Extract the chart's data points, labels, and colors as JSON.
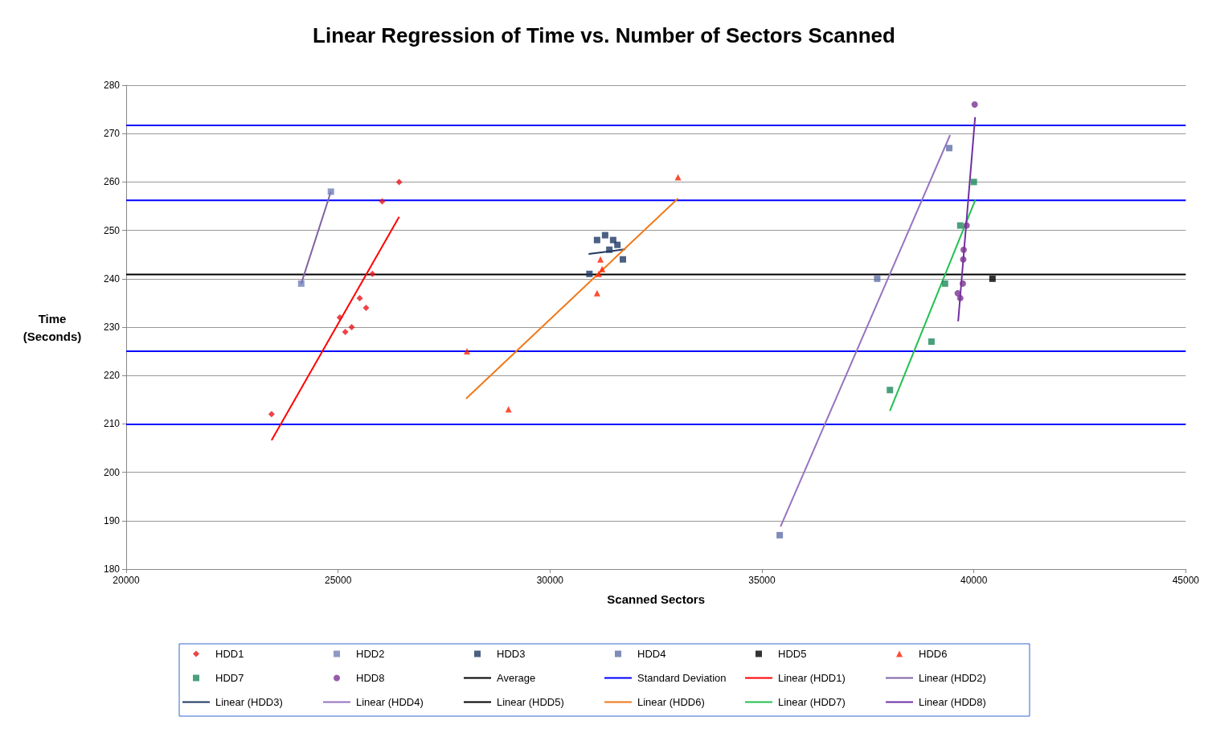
{
  "chart_data": {
    "type": "scatter",
    "title": "Linear Regression of Time vs. Number of Sectors Scanned",
    "xlabel": "Scanned Sectors",
    "ylabel": "Time (Seconds)",
    "xlim": [
      20000,
      45000
    ],
    "xticks": [
      {
        "value": 20000,
        "label": "20000"
      },
      {
        "value": 25000,
        "label": "25000"
      },
      {
        "value": 30000,
        "label": "30000"
      },
      {
        "value": 35000,
        "label": "35000"
      },
      {
        "value": 40000,
        "label": "40000"
      },
      {
        "value": 45000,
        "label": "45000"
      }
    ],
    "ylim": [
      180,
      280
    ],
    "yticks": [
      180,
      190,
      200,
      210,
      220,
      230,
      240,
      250,
      260,
      270,
      280
    ],
    "grid": "y",
    "legend": "bottom",
    "series": [
      {
        "name": "HDD1",
        "marker": "diamond",
        "color": "#e8141b",
        "x": [
          23430,
          25040,
          25170,
          25320,
          25510,
          25660,
          25810,
          26040,
          26440
        ],
        "values": [
          212,
          232,
          229,
          230,
          236,
          234,
          241,
          256,
          260
        ]
      },
      {
        "name": "HDD2",
        "marker": "square",
        "color": "#7080b8",
        "x": [
          24130,
          24830
        ],
        "values": [
          239,
          258
        ]
      },
      {
        "name": "HDD3",
        "marker": "square",
        "color": "#1f3864",
        "x": [
          30930,
          31110,
          31300,
          31490,
          31590,
          31400,
          31720
        ],
        "values": [
          241,
          248,
          249,
          248,
          247,
          246,
          244
        ]
      },
      {
        "name": "HDD4",
        "marker": "square",
        "color": "#5f6fa8",
        "x": [
          35420,
          37720,
          39420
        ],
        "values": [
          187,
          240,
          267
        ]
      },
      {
        "name": "HDD5",
        "marker": "square",
        "color": "#000000",
        "x": [
          40440
        ],
        "values": [
          240
        ]
      },
      {
        "name": "HDD6",
        "marker": "triangle",
        "color": "#ff2000",
        "x": [
          28040,
          29020,
          31110,
          31190,
          31230,
          31150,
          33020
        ],
        "values": [
          225,
          213,
          237,
          244,
          242,
          241,
          261
        ]
      },
      {
        "name": "HDD7",
        "marker": "square",
        "color": "#1b8a5a",
        "x": [
          38020,
          39000,
          39320,
          39680,
          40000
        ],
        "values": [
          217,
          227,
          239,
          251,
          260
        ]
      },
      {
        "name": "HDD8",
        "marker": "circle",
        "color": "#7b3294",
        "x": [
          40020,
          39830,
          39760,
          39750,
          39740,
          39620,
          39680
        ],
        "values": [
          276,
          251,
          246,
          244,
          239,
          237,
          236
        ]
      },
      {
        "name": "Linear (HDD1)",
        "type": "line",
        "marker": "none",
        "color": "#ff0000",
        "x": [
          23430,
          26440
        ],
        "values": [
          206.6,
          252.8
        ]
      },
      {
        "name": "Linear (HDD2)",
        "type": "line",
        "marker": "none",
        "color": "#8064a2",
        "x": [
          24130,
          24830
        ],
        "values": [
          239,
          258
        ]
      },
      {
        "name": "Linear (HDD3)",
        "type": "line",
        "marker": "none",
        "color": "#1f3864",
        "x": [
          30910,
          31780
        ],
        "values": [
          245.1,
          246.1
        ]
      },
      {
        "name": "Linear (HDD4)",
        "type": "line",
        "marker": "none",
        "color": "#9673c0",
        "x": [
          35440,
          39440
        ],
        "values": [
          188.8,
          269.7
        ]
      },
      {
        "name": "Linear (HDD5)",
        "type": "line",
        "marker": "none",
        "color": "#000000"
      },
      {
        "name": "Linear (HDD6)",
        "type": "line",
        "marker": "none",
        "color": "#f07818",
        "x": [
          28020,
          33020
        ],
        "values": [
          215.2,
          256.6
        ]
      },
      {
        "name": "Linear (HDD7)",
        "type": "line",
        "marker": "none",
        "color": "#20c050",
        "x": [
          38020,
          40040
        ],
        "values": [
          212.7,
          256.4
        ]
      },
      {
        "name": "Linear (HDD8)",
        "type": "line",
        "marker": "none",
        "color": "#7030a0",
        "x": [
          39630,
          40030
        ],
        "values": [
          231.2,
          273.4
        ]
      }
    ],
    "ref_lines": [
      {
        "axis": "y",
        "value": 240.9,
        "label": "Average",
        "color": "#000000"
      },
      {
        "axis": "y",
        "value": 271.7,
        "label": "Standard Deviation",
        "color": "#0000ff"
      },
      {
        "axis": "y",
        "value": 256.2,
        "color": "#0000ff"
      },
      {
        "axis": "y",
        "value": 225.0,
        "color": "#0000ff"
      },
      {
        "axis": "y",
        "value": 209.9,
        "color": "#0000ff"
      }
    ]
  }
}
